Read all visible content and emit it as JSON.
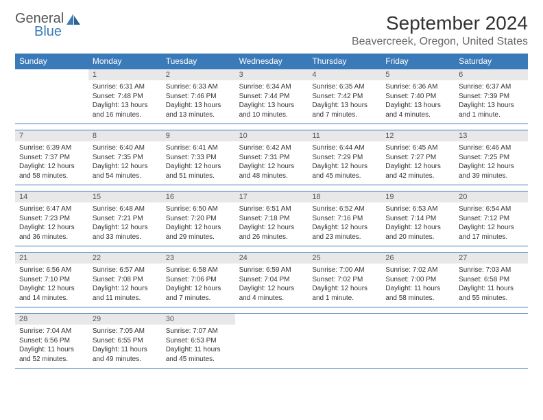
{
  "logo": {
    "line1": "General",
    "line2": "Blue"
  },
  "title": "September 2024",
  "location": "Beavercreek, Oregon, United States",
  "colors": {
    "header_bg": "#3a7ab8",
    "header_text": "#ffffff",
    "daynum_bg": "#e8e8e8",
    "text": "#333333",
    "logo_gray": "#555555",
    "logo_blue": "#3a7ab8",
    "page_bg": "#ffffff",
    "divider": "#3a7ab8"
  },
  "typography": {
    "title_fontsize": 28,
    "location_fontsize": 16,
    "dayheader_fontsize": 12,
    "daynum_fontsize": 11,
    "body_fontsize": 10
  },
  "layout": {
    "columns": 7,
    "weeks": 5,
    "start_day": 1
  },
  "day_names": [
    "Sunday",
    "Monday",
    "Tuesday",
    "Wednesday",
    "Thursday",
    "Friday",
    "Saturday"
  ],
  "days": [
    {
      "n": 1,
      "sr": "6:31 AM",
      "ss": "7:48 PM",
      "dl": "13 hours and 16 minutes."
    },
    {
      "n": 2,
      "sr": "6:33 AM",
      "ss": "7:46 PM",
      "dl": "13 hours and 13 minutes."
    },
    {
      "n": 3,
      "sr": "6:34 AM",
      "ss": "7:44 PM",
      "dl": "13 hours and 10 minutes."
    },
    {
      "n": 4,
      "sr": "6:35 AM",
      "ss": "7:42 PM",
      "dl": "13 hours and 7 minutes."
    },
    {
      "n": 5,
      "sr": "6:36 AM",
      "ss": "7:40 PM",
      "dl": "13 hours and 4 minutes."
    },
    {
      "n": 6,
      "sr": "6:37 AM",
      "ss": "7:39 PM",
      "dl": "13 hours and 1 minute."
    },
    {
      "n": 7,
      "sr": "6:39 AM",
      "ss": "7:37 PM",
      "dl": "12 hours and 58 minutes."
    },
    {
      "n": 8,
      "sr": "6:40 AM",
      "ss": "7:35 PM",
      "dl": "12 hours and 54 minutes."
    },
    {
      "n": 9,
      "sr": "6:41 AM",
      "ss": "7:33 PM",
      "dl": "12 hours and 51 minutes."
    },
    {
      "n": 10,
      "sr": "6:42 AM",
      "ss": "7:31 PM",
      "dl": "12 hours and 48 minutes."
    },
    {
      "n": 11,
      "sr": "6:44 AM",
      "ss": "7:29 PM",
      "dl": "12 hours and 45 minutes."
    },
    {
      "n": 12,
      "sr": "6:45 AM",
      "ss": "7:27 PM",
      "dl": "12 hours and 42 minutes."
    },
    {
      "n": 13,
      "sr": "6:46 AM",
      "ss": "7:25 PM",
      "dl": "12 hours and 39 minutes."
    },
    {
      "n": 14,
      "sr": "6:47 AM",
      "ss": "7:23 PM",
      "dl": "12 hours and 36 minutes."
    },
    {
      "n": 15,
      "sr": "6:48 AM",
      "ss": "7:21 PM",
      "dl": "12 hours and 33 minutes."
    },
    {
      "n": 16,
      "sr": "6:50 AM",
      "ss": "7:20 PM",
      "dl": "12 hours and 29 minutes."
    },
    {
      "n": 17,
      "sr": "6:51 AM",
      "ss": "7:18 PM",
      "dl": "12 hours and 26 minutes."
    },
    {
      "n": 18,
      "sr": "6:52 AM",
      "ss": "7:16 PM",
      "dl": "12 hours and 23 minutes."
    },
    {
      "n": 19,
      "sr": "6:53 AM",
      "ss": "7:14 PM",
      "dl": "12 hours and 20 minutes."
    },
    {
      "n": 20,
      "sr": "6:54 AM",
      "ss": "7:12 PM",
      "dl": "12 hours and 17 minutes."
    },
    {
      "n": 21,
      "sr": "6:56 AM",
      "ss": "7:10 PM",
      "dl": "12 hours and 14 minutes."
    },
    {
      "n": 22,
      "sr": "6:57 AM",
      "ss": "7:08 PM",
      "dl": "12 hours and 11 minutes."
    },
    {
      "n": 23,
      "sr": "6:58 AM",
      "ss": "7:06 PM",
      "dl": "12 hours and 7 minutes."
    },
    {
      "n": 24,
      "sr": "6:59 AM",
      "ss": "7:04 PM",
      "dl": "12 hours and 4 minutes."
    },
    {
      "n": 25,
      "sr": "7:00 AM",
      "ss": "7:02 PM",
      "dl": "12 hours and 1 minute."
    },
    {
      "n": 26,
      "sr": "7:02 AM",
      "ss": "7:00 PM",
      "dl": "11 hours and 58 minutes."
    },
    {
      "n": 27,
      "sr": "7:03 AM",
      "ss": "6:58 PM",
      "dl": "11 hours and 55 minutes."
    },
    {
      "n": 28,
      "sr": "7:04 AM",
      "ss": "6:56 PM",
      "dl": "11 hours and 52 minutes."
    },
    {
      "n": 29,
      "sr": "7:05 AM",
      "ss": "6:55 PM",
      "dl": "11 hours and 49 minutes."
    },
    {
      "n": 30,
      "sr": "7:07 AM",
      "ss": "6:53 PM",
      "dl": "11 hours and 45 minutes."
    }
  ],
  "labels": {
    "sunrise": "Sunrise:",
    "sunset": "Sunset:",
    "daylight": "Daylight:"
  }
}
